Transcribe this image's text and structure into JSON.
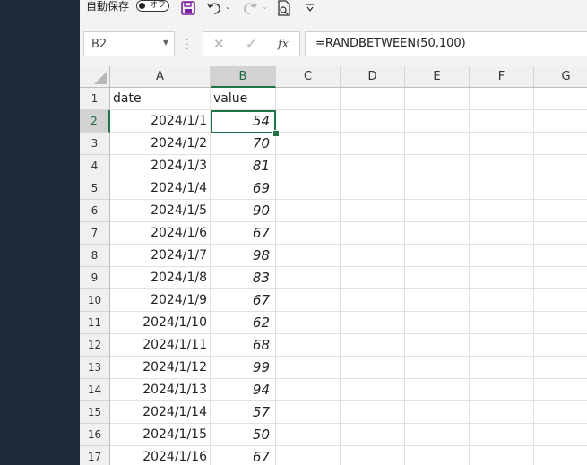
{
  "toolbar": {
    "autosave_label": "自動保存",
    "autosave_state": "オフ",
    "icons": [
      "save-icon",
      "undo-icon",
      "redo-icon",
      "print-preview-icon",
      "customize-qat-icon"
    ]
  },
  "formula_bar": {
    "name_box": "B2",
    "cancel_glyph": "✕",
    "enter_glyph": "✓",
    "fx_glyph": "fx",
    "formula": "=RANDBETWEEN(50,100)"
  },
  "columns": [
    "A",
    "B",
    "C",
    "D",
    "E",
    "F",
    "G"
  ],
  "header_row": {
    "a": "date",
    "b": "value"
  },
  "rows": [
    {
      "num": "1"
    },
    {
      "num": "2",
      "date": "2024/1/1",
      "value": "54"
    },
    {
      "num": "3",
      "date": "2024/1/2",
      "value": "70"
    },
    {
      "num": "4",
      "date": "2024/1/3",
      "value": "81"
    },
    {
      "num": "5",
      "date": "2024/1/4",
      "value": "69"
    },
    {
      "num": "6",
      "date": "2024/1/5",
      "value": "90"
    },
    {
      "num": "7",
      "date": "2024/1/6",
      "value": "67"
    },
    {
      "num": "8",
      "date": "2024/1/7",
      "value": "98"
    },
    {
      "num": "9",
      "date": "2024/1/8",
      "value": "83"
    },
    {
      "num": "10",
      "date": "2024/1/9",
      "value": "67"
    },
    {
      "num": "11",
      "date": "2024/1/10",
      "value": "62"
    },
    {
      "num": "12",
      "date": "2024/1/11",
      "value": "68"
    },
    {
      "num": "13",
      "date": "2024/1/12",
      "value": "99"
    },
    {
      "num": "14",
      "date": "2024/1/13",
      "value": "94"
    },
    {
      "num": "15",
      "date": "2024/1/14",
      "value": "57"
    },
    {
      "num": "16",
      "date": "2024/1/15",
      "value": "50"
    },
    {
      "num": "17",
      "date": "2024/1/16",
      "value": "67"
    }
  ],
  "selection": {
    "cell": "B2"
  },
  "colors": {
    "accent": "#217346",
    "save_icon": "#7a1fa2"
  }
}
